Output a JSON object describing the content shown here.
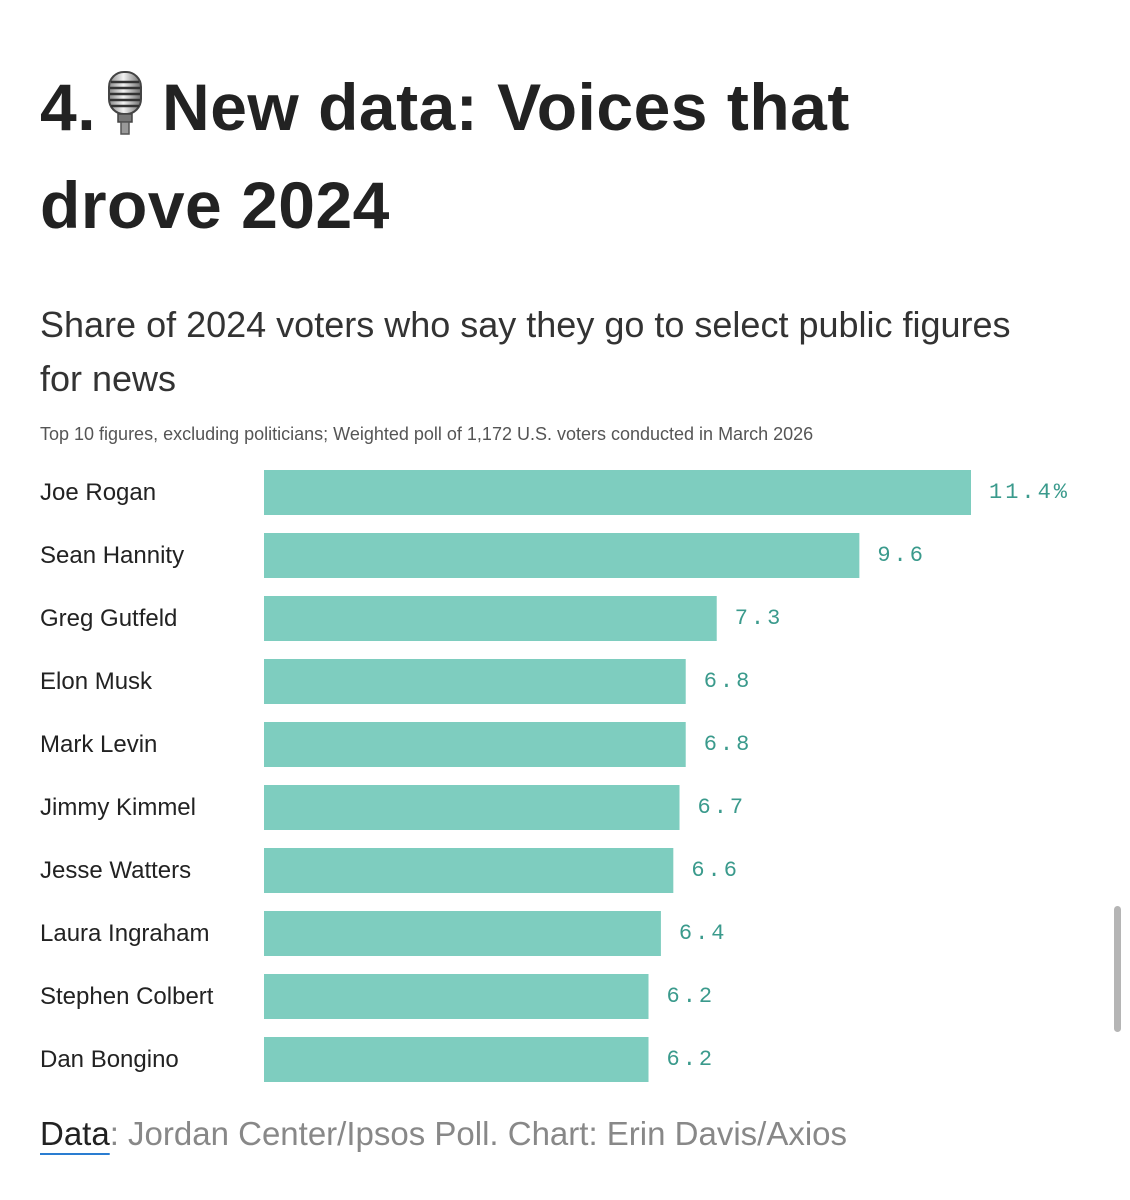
{
  "headline": {
    "number": "4.",
    "icon": "microphone-icon",
    "text": "New data: Voices that drove 2024"
  },
  "chart_data": {
    "type": "bar",
    "orientation": "horizontal",
    "title": "Share of 2024 voters who say they go to select public figures for news",
    "subtitle": "Top 10 figures, excluding politicians; Weighted poll of 1,172 U.S. voters conducted in March 2026",
    "categories": [
      "Joe Rogan",
      "Sean Hannity",
      "Greg Gutfeld",
      "Elon Musk",
      "Mark Levin",
      "Jimmy Kimmel",
      "Jesse Watters",
      "Laura Ingraham",
      "Stephen Colbert",
      "Dan Bongino"
    ],
    "values": [
      11.4,
      9.6,
      7.3,
      6.8,
      6.8,
      6.7,
      6.6,
      6.4,
      6.2,
      6.2
    ],
    "value_labels": [
      "11.4%",
      "9.6",
      "7.3",
      "6.8",
      "6.8",
      "6.7",
      "6.6",
      "6.4",
      "6.2",
      "6.2"
    ],
    "xlim": [
      0,
      11.4
    ],
    "bar_color": "#7ecdbf",
    "label_color": "#3a9a8c",
    "grid": false
  },
  "footer": {
    "label": "Data",
    "text": ": Jordan Center/Ipsos Poll. Chart: Erin Davis/Axios"
  }
}
